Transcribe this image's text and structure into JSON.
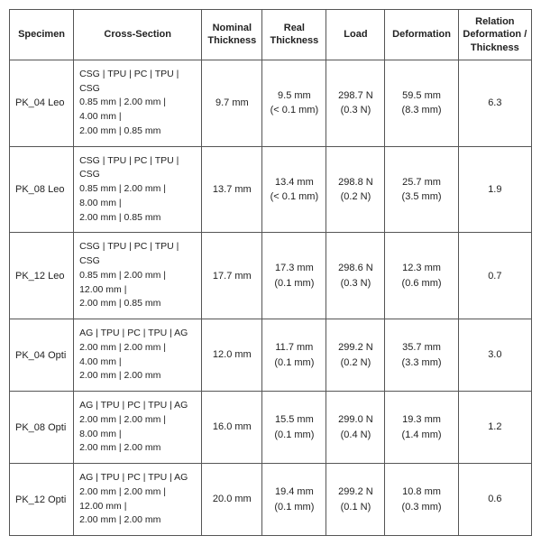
{
  "table": {
    "columns": [
      {
        "key": "specimen",
        "label": "Specimen"
      },
      {
        "key": "xsection",
        "label": "Cross-Section"
      },
      {
        "key": "nominal",
        "label": "Nominal Thickness"
      },
      {
        "key": "real",
        "label": "Real Thickness"
      },
      {
        "key": "load",
        "label": "Load"
      },
      {
        "key": "def",
        "label": "Deformation"
      },
      {
        "key": "rel",
        "label": "Relation Deformation / Thickness"
      }
    ],
    "rows": [
      {
        "specimen": "PK_04 Leo",
        "xs_l1": "CSG | TPU | PC | TPU | CSG",
        "xs_l2": "0.85 mm | 2.00 mm |",
        "xs_l3": "4.00 mm |",
        "xs_l4": "2.00 mm | 0.85 mm",
        "nominal": "9.7 mm",
        "real_v": "9.5 mm",
        "real_sd": "(< 0.1 mm)",
        "load_v": "298.7 N",
        "load_sd": "(0.3 N)",
        "def_v": "59.5 mm",
        "def_sd": "(8.3 mm)",
        "rel": "6.3"
      },
      {
        "specimen": "PK_08 Leo",
        "xs_l1": "CSG | TPU | PC | TPU | CSG",
        "xs_l2": "0.85 mm | 2.00 mm |",
        "xs_l3": "8.00 mm |",
        "xs_l4": "2.00 mm | 0.85 mm",
        "nominal": "13.7 mm",
        "real_v": "13.4 mm",
        "real_sd": "(< 0.1 mm)",
        "load_v": "298.8 N",
        "load_sd": "(0.2 N)",
        "def_v": "25.7 mm",
        "def_sd": "(3.5 mm)",
        "rel": "1.9"
      },
      {
        "specimen": "PK_12 Leo",
        "xs_l1": "CSG | TPU | PC | TPU | CSG",
        "xs_l2": "0.85 mm | 2.00 mm |",
        "xs_l3": "12.00 mm |",
        "xs_l4": "2.00 mm | 0.85 mm",
        "nominal": "17.7 mm",
        "real_v": "17.3 mm",
        "real_sd": "(0.1 mm)",
        "load_v": "298.6 N",
        "load_sd": "(0.3 N)",
        "def_v": "12.3 mm",
        "def_sd": "(0.6 mm)",
        "rel": "0.7"
      },
      {
        "specimen": "PK_04 Opti",
        "xs_l1": "AG | TPU | PC | TPU | AG",
        "xs_l2": "2.00 mm | 2.00 mm |",
        "xs_l3": "4.00 mm |",
        "xs_l4": "2.00 mm | 2.00 mm",
        "nominal": "12.0 mm",
        "real_v": "11.7 mm",
        "real_sd": "(0.1 mm)",
        "load_v": "299.2 N",
        "load_sd": "(0.2 N)",
        "def_v": "35.7 mm",
        "def_sd": "(3.3 mm)",
        "rel": "3.0"
      },
      {
        "specimen": "PK_08 Opti",
        "xs_l1": "AG | TPU | PC | TPU | AG",
        "xs_l2": "2.00 mm | 2.00 mm |",
        "xs_l3": "8.00 mm |",
        "xs_l4": "2.00 mm | 2.00 mm",
        "nominal": "16.0 mm",
        "real_v": "15.5 mm",
        "real_sd": "(0.1 mm)",
        "load_v": "299.0 N",
        "load_sd": "(0.4 N)",
        "def_v": "19.3 mm",
        "def_sd": "(1.4 mm)",
        "rel": "1.2"
      },
      {
        "specimen": "PK_12 Opti",
        "xs_l1": "AG | TPU | PC | TPU | AG",
        "xs_l2": "2.00 mm | 2.00 mm |",
        "xs_l3": "12.00 mm |",
        "xs_l4": "2.00 mm | 2.00 mm",
        "nominal": "20.0 mm",
        "real_v": "19.4 mm",
        "real_sd": "(0.1 mm)",
        "load_v": "299.2 N",
        "load_sd": "(0.1 N)",
        "def_v": "10.8 mm",
        "def_sd": "(0.3 mm)",
        "rel": "0.6"
      }
    ],
    "border_color": "#555555",
    "text_color": "#222222",
    "font_family": "Arial",
    "header_fontsize": 11,
    "cell_fontsize": 11,
    "xsection_fontsize": 10.5
  }
}
